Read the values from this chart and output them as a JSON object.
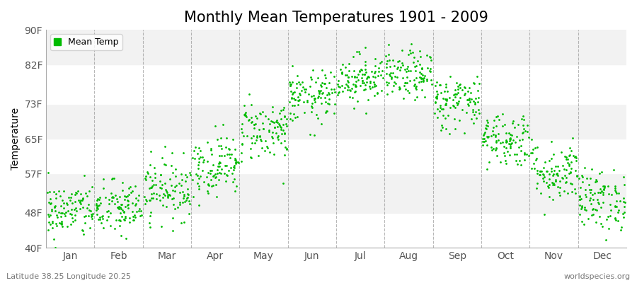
{
  "title": "Monthly Mean Temperatures 1901 - 2009",
  "ylabel": "Temperature",
  "yticks": [
    40,
    48,
    57,
    65,
    73,
    82,
    90
  ],
  "ytick_labels": [
    "40F",
    "48F",
    "57F",
    "65F",
    "73F",
    "82F",
    "90F"
  ],
  "ylim": [
    40,
    90
  ],
  "months": [
    "Jan",
    "Feb",
    "Mar",
    "Apr",
    "May",
    "Jun",
    "Jul",
    "Aug",
    "Sep",
    "Oct",
    "Nov",
    "Dec"
  ],
  "dot_color": "#00bb00",
  "bg_color": "#ffffff",
  "band_light": "#f2f2f2",
  "band_white": "#ffffff",
  "legend_label": "Mean Temp",
  "bottom_left": "Latitude 38.25 Longitude 20.25",
  "bottom_right": "worldspecies.org",
  "mean_temps_F": [
    48.5,
    49.0,
    53.5,
    59.0,
    67.0,
    74.5,
    79.0,
    79.5,
    73.5,
    65.0,
    57.5,
    51.0
  ],
  "std_temps": [
    3.2,
    3.2,
    3.5,
    3.5,
    3.5,
    3.0,
    2.8,
    2.8,
    3.2,
    3.2,
    3.5,
    3.5
  ],
  "years": 109,
  "title_fontsize": 15,
  "vline_color": "#888888",
  "ylabel_fontsize": 10,
  "tick_fontsize": 10
}
